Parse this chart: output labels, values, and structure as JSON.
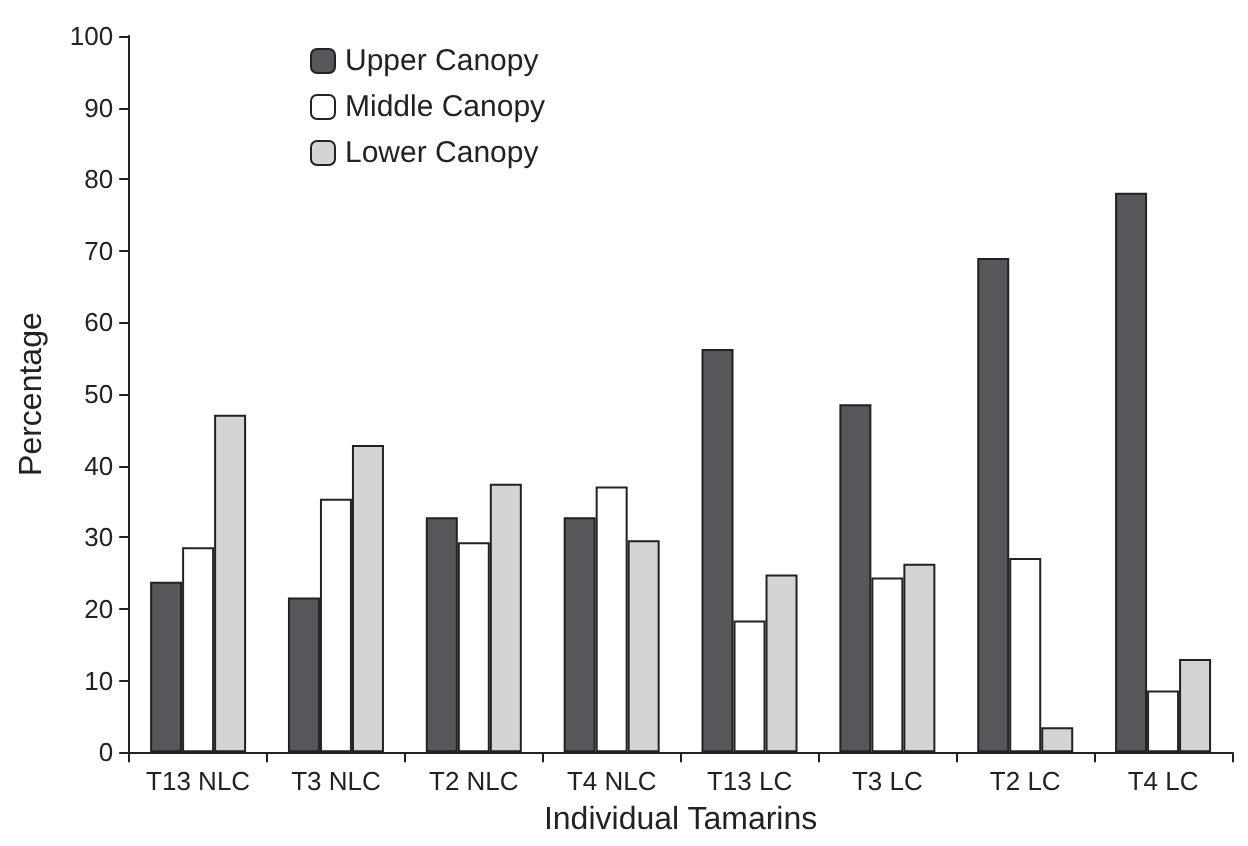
{
  "chart_data": {
    "type": "bar",
    "xlabel": "Individual Tamarins",
    "ylabel": "Percentage",
    "categories": [
      "T13 NLC",
      "T3 NLC",
      "T2 NLC",
      "T4 NLC",
      "T13 LC",
      "T3 LC",
      "T2 LC",
      "T4 LC"
    ],
    "series": [
      {
        "name": "Upper Canopy",
        "color": "#55575a",
        "values": [
          23.8,
          21.6,
          32.8,
          32.8,
          56.3,
          48.6,
          69.0,
          78.1
        ]
      },
      {
        "name": "Middle Canopy",
        "color": "#ffffff",
        "values": [
          28.6,
          35.4,
          29.3,
          37.1,
          18.4,
          24.4,
          27.1,
          8.6
        ]
      },
      {
        "name": "Lower Canopy",
        "color": "#d3d4d6",
        "values": [
          47.1,
          42.9,
          37.5,
          29.6,
          24.8,
          26.3,
          3.5,
          13.0
        ]
      }
    ],
    "ylim": [
      0,
      100
    ],
    "yticks": [
      0,
      10,
      20,
      30,
      40,
      50,
      60,
      70,
      80,
      90,
      100
    ],
    "grid": false,
    "legend": "top left"
  }
}
